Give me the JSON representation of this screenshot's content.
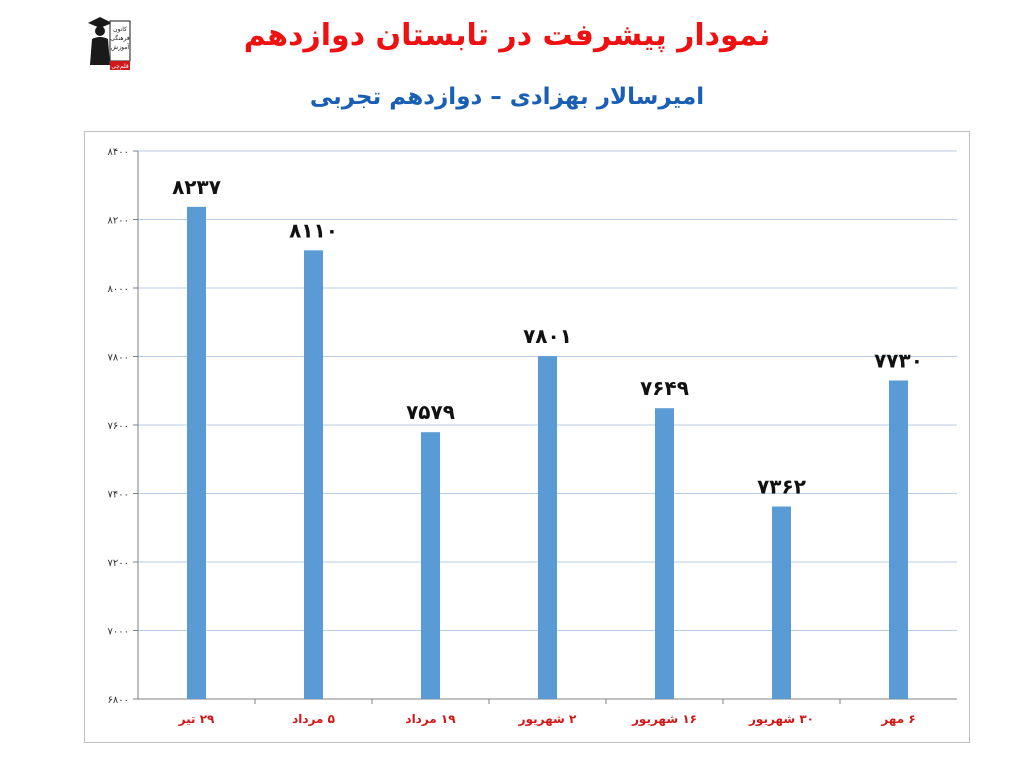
{
  "header": {
    "title": "نمودار پیشرفت در تابستان دوازدهم",
    "subtitle": "امیرسالار بهزادی – دوازدهم تجربی",
    "logo_text": [
      "کانون",
      "فرهنگی",
      "آموزش",
      "قلم‌چی"
    ]
  },
  "colors": {
    "bar": "#5b9bd5",
    "title": "#ee1111",
    "subtitle": "#1a5fb4",
    "category": "#d01818",
    "grid": "#b9cde5"
  },
  "chart_data": {
    "type": "bar",
    "title": "نمودار پیشرفت در تابستان دوازدهم",
    "subtitle": "امیرسالار بهزادی – دوازدهم تجربی",
    "categories": [
      "۲۹ تیر",
      "۵ مرداد",
      "۱۹ مرداد",
      "۲ شهریور",
      "۱۶ شهریور",
      "۳۰ شهریور",
      "۶ مهر"
    ],
    "values": [
      8237,
      8110,
      7579,
      7801,
      7649,
      7362,
      7730
    ],
    "data_labels": [
      "۸۲۳۷",
      "۸۱۱۰",
      "۷۵۷۹",
      "۷۸۰۱",
      "۷۶۴۹",
      "۷۳۶۲",
      "۷۷۳۰"
    ],
    "ylim": [
      6800,
      8400
    ],
    "yticks": [
      6800,
      7000,
      7200,
      7400,
      7600,
      7800,
      8000,
      8200,
      8400
    ],
    "ytick_labels": [
      "۶۸۰۰",
      "۷۰۰۰",
      "۷۲۰۰",
      "۷۴۰۰",
      "۷۶۰۰",
      "۷۸۰۰",
      "۸۰۰۰",
      "۸۲۰۰",
      "۸۴۰۰"
    ],
    "grid": true,
    "legend": "none"
  }
}
